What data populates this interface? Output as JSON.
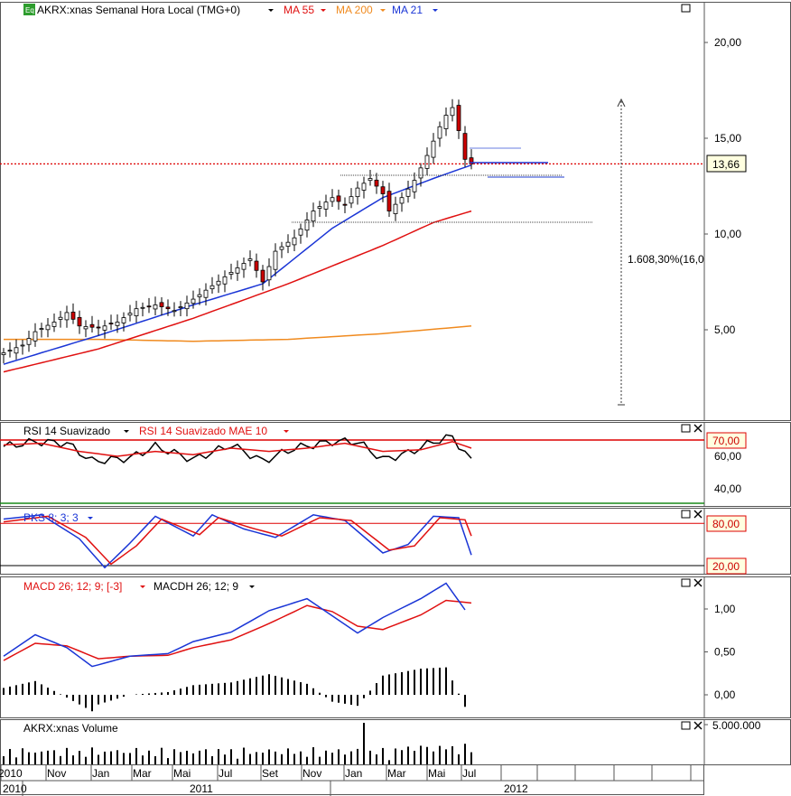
{
  "main": {
    "symbol_badge": "Eq",
    "title": "AKRX:xnas Semanal Hora Local (TMG+0)",
    "ma55_label": "MA 55",
    "ma200_label": "MA 200",
    "ma21_label": "MA 21",
    "price_badge": "13,66",
    "range_label": "1.608,30%(16,0",
    "yticks": [
      "20,00",
      "15,00",
      "10,00",
      "5,00"
    ]
  },
  "rsi": {
    "label1": "RSI 14 Suavizado",
    "label2": "RSI 14 Suavizado MAE 10",
    "badge": "70,00",
    "yticks": [
      "60,00",
      "40,00"
    ]
  },
  "pks": {
    "label": "PKS 8; 3; 3",
    "badge_high": "80,00",
    "badge_low": "20,00"
  },
  "macd": {
    "label1": "MACD 26; 12; 9; [-3]",
    "label2": "MACDH 26; 12; 9",
    "yticks": [
      "1,00",
      "0,50",
      "0,00"
    ]
  },
  "volume": {
    "label": "AKRX:xnas Volume",
    "ytick": "5.000.000"
  },
  "xaxis": {
    "months": [
      "2010",
      "Nov",
      "Jan",
      "Mar",
      "Mai",
      "Jul",
      "Set",
      "Nov",
      "Jan",
      "Mar",
      "Mai",
      "Jul"
    ],
    "years": [
      "2010",
      "2011",
      "2012"
    ]
  },
  "colors": {
    "up": "#ffffff",
    "down": "#cc0000",
    "ma21": "#1a35d6",
    "ma55": "#e01010",
    "ma200": "#f08a1e",
    "rsi": "#000000",
    "rsi_ma": "#e01010",
    "pks_k": "#1a35d6",
    "pks_d": "#e01010",
    "macd": "#1a35d6",
    "macd_signal": "#e01010",
    "badge_bg": "#ffffe0"
  },
  "chart_data": {
    "type": "candlestick",
    "symbol": "AKRX:xnas",
    "timeframe": "weekly",
    "last_price": 13.66,
    "close_points": [
      [
        0,
        3.8
      ],
      [
        3,
        4.2
      ],
      [
        5,
        4.9
      ],
      [
        8,
        5.4
      ],
      [
        10,
        5.9
      ],
      [
        12,
        5.2
      ],
      [
        15,
        5.1
      ],
      [
        18,
        5.4
      ],
      [
        21,
        6.1
      ],
      [
        24,
        6.3
      ],
      [
        27,
        6.0
      ],
      [
        30,
        6.6
      ],
      [
        33,
        7.3
      ],
      [
        36,
        8.0
      ],
      [
        39,
        8.7
      ],
      [
        41,
        7.5
      ],
      [
        43,
        9.1
      ],
      [
        46,
        9.8
      ],
      [
        49,
        11.2
      ],
      [
        52,
        11.9
      ],
      [
        54,
        11.5
      ],
      [
        56,
        12.4
      ],
      [
        58,
        12.9
      ],
      [
        60,
        12.1
      ],
      [
        61,
        11.2
      ],
      [
        63,
        11.9
      ],
      [
        65,
        12.8
      ],
      [
        67,
        14.1
      ],
      [
        69,
        15.6
      ],
      [
        70,
        16.2
      ],
      [
        71,
        16.6
      ],
      [
        72,
        15.4
      ],
      [
        73,
        13.9
      ],
      [
        74,
        13.66
      ]
    ],
    "ma21_points": [
      [
        0,
        3.2
      ],
      [
        15,
        4.7
      ],
      [
        30,
        6.3
      ],
      [
        41,
        7.4
      ],
      [
        52,
        10.3
      ],
      [
        60,
        11.9
      ],
      [
        68,
        12.9
      ],
      [
        74,
        13.6
      ]
    ],
    "ma55_points": [
      [
        0,
        2.8
      ],
      [
        15,
        4.0
      ],
      [
        30,
        5.6
      ],
      [
        45,
        7.4
      ],
      [
        60,
        9.4
      ],
      [
        68,
        10.6
      ],
      [
        74,
        11.2
      ]
    ],
    "ma200_points": [
      [
        0,
        4.5
      ],
      [
        15,
        4.5
      ],
      [
        30,
        4.4
      ],
      [
        45,
        4.5
      ],
      [
        60,
        4.8
      ],
      [
        74,
        5.2
      ]
    ],
    "rsi_points": [
      [
        0,
        66
      ],
      [
        5,
        69
      ],
      [
        10,
        68
      ],
      [
        14,
        57
      ],
      [
        20,
        59
      ],
      [
        24,
        66
      ],
      [
        30,
        58
      ],
      [
        36,
        67
      ],
      [
        41,
        57
      ],
      [
        46,
        65
      ],
      [
        52,
        69
      ],
      [
        56,
        69
      ],
      [
        60,
        58
      ],
      [
        64,
        62
      ],
      [
        68,
        69
      ],
      [
        71,
        72
      ],
      [
        74,
        57
      ]
    ],
    "rsi_ma_points": [
      [
        0,
        67
      ],
      [
        6,
        68
      ],
      [
        12,
        63
      ],
      [
        18,
        60
      ],
      [
        24,
        63
      ],
      [
        30,
        61
      ],
      [
        36,
        65
      ],
      [
        42,
        63
      ],
      [
        48,
        65
      ],
      [
        54,
        68
      ],
      [
        60,
        63
      ],
      [
        66,
        64
      ],
      [
        71,
        69
      ],
      [
        74,
        65
      ]
    ],
    "pks_k_points": [
      [
        0,
        86
      ],
      [
        6,
        92
      ],
      [
        12,
        58
      ],
      [
        16,
        17
      ],
      [
        20,
        52
      ],
      [
        24,
        90
      ],
      [
        30,
        62
      ],
      [
        33,
        92
      ],
      [
        38,
        72
      ],
      [
        43,
        60
      ],
      [
        49,
        92
      ],
      [
        54,
        84
      ],
      [
        60,
        38
      ],
      [
        64,
        50
      ],
      [
        68,
        90
      ],
      [
        72,
        88
      ],
      [
        74,
        35
      ]
    ],
    "pks_d_points": [
      [
        0,
        82
      ],
      [
        7,
        90
      ],
      [
        13,
        60
      ],
      [
        17,
        22
      ],
      [
        21,
        48
      ],
      [
        25,
        86
      ],
      [
        31,
        64
      ],
      [
        34,
        88
      ],
      [
        39,
        74
      ],
      [
        44,
        62
      ],
      [
        50,
        88
      ],
      [
        55,
        84
      ],
      [
        61,
        42
      ],
      [
        65,
        48
      ],
      [
        69,
        88
      ],
      [
        73,
        85
      ],
      [
        74,
        62
      ]
    ],
    "macd_points": [
      [
        0,
        0.45
      ],
      [
        5,
        0.7
      ],
      [
        10,
        0.55
      ],
      [
        14,
        0.33
      ],
      [
        20,
        0.45
      ],
      [
        26,
        0.48
      ],
      [
        30,
        0.62
      ],
      [
        36,
        0.73
      ],
      [
        42,
        0.98
      ],
      [
        48,
        1.12
      ],
      [
        52,
        0.92
      ],
      [
        56,
        0.72
      ],
      [
        60,
        0.9
      ],
      [
        66,
        1.12
      ],
      [
        70,
        1.3
      ],
      [
        73,
        0.99
      ]
    ],
    "signal_points": [
      [
        0,
        0.4
      ],
      [
        5,
        0.6
      ],
      [
        10,
        0.57
      ],
      [
        15,
        0.42
      ],
      [
        20,
        0.45
      ],
      [
        26,
        0.46
      ],
      [
        30,
        0.55
      ],
      [
        36,
        0.64
      ],
      [
        42,
        0.83
      ],
      [
        48,
        1.04
      ],
      [
        52,
        0.97
      ],
      [
        56,
        0.8
      ],
      [
        60,
        0.76
      ],
      [
        66,
        0.93
      ],
      [
        70,
        1.1
      ],
      [
        74,
        1.07
      ]
    ],
    "volume_max": 5000000
  }
}
